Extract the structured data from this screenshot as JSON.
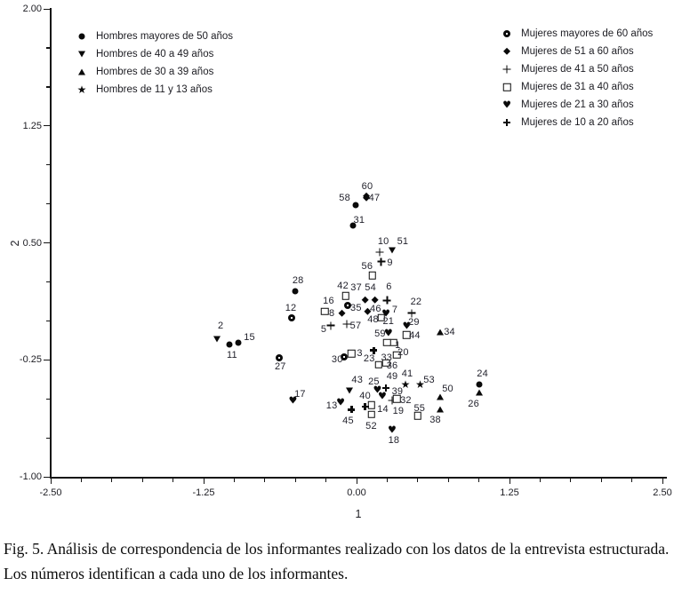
{
  "caption": {
    "text": "Fig. 5. Análisis de correspondencia de los informantes realizado con los datos de la entrevista estructurada. Los números identifican a cada uno de los informantes."
  },
  "chart_data": {
    "type": "scatter",
    "title": "",
    "xlabel": "1",
    "ylabel": "2",
    "xlim": [
      -2.5,
      2.5
    ],
    "ylim": [
      -1.0,
      2.0
    ],
    "grid": false,
    "minor_tick_step": 0.25,
    "x_ticks": [
      {
        "value": -2.5,
        "label": "-2.50"
      },
      {
        "value": -1.25,
        "label": "-1.25"
      },
      {
        "value": 0.0,
        "label": "0.00"
      },
      {
        "value": 1.25,
        "label": "1.25"
      },
      {
        "value": 2.5,
        "label": "2.50"
      }
    ],
    "y_ticks": [
      {
        "value": 2.0,
        "label": "2.00"
      },
      {
        "value": 1.25,
        "label": "1.25"
      },
      {
        "value": 0.5,
        "label": "0.50"
      },
      {
        "value": -0.25,
        "label": "-0.25"
      },
      {
        "value": -1.0,
        "label": "-1.00"
      }
    ],
    "legend_left": [
      {
        "marker": "filled-circle",
        "label": "Hombres mayores de 50 años"
      },
      {
        "marker": "triangle-down",
        "label": "Hombres de 40 a 49 años"
      },
      {
        "marker": "triangle-up",
        "label": "Hombres de 30 a 39 años"
      },
      {
        "marker": "star",
        "label": "Hombres de 11 y 13 años"
      }
    ],
    "legend_right": [
      {
        "marker": "circle-dot",
        "label": "Mujeres mayores de 60 años"
      },
      {
        "marker": "diamond",
        "label": "Mujeres de 51 a 60 años"
      },
      {
        "marker": "plus",
        "label": "Mujeres de 41 a 50 años"
      },
      {
        "marker": "open-square",
        "label": "Mujeres de 31 a 40 años"
      },
      {
        "marker": "heart",
        "label": "Mujeres de 21 a 30 años"
      },
      {
        "marker": "bold-plus",
        "label": "Mujeres de 10 a 20 años"
      }
    ],
    "series": [
      {
        "name": "Hombres mayores de 50 años",
        "marker": "filled-circle",
        "points": [
          {
            "id": "58",
            "x": -0.01,
            "y": 0.74,
            "dx": -12,
            "dy": -8
          },
          {
            "id": "31",
            "x": -0.03,
            "y": 0.61,
            "dx": 7,
            "dy": -6
          },
          {
            "id": "28",
            "x": -0.5,
            "y": 0.19,
            "dx": 3,
            "dy": -12
          },
          {
            "id": "11",
            "x": -1.04,
            "y": -0.15,
            "dx": 3,
            "dy": 12
          },
          {
            "id": "15",
            "x": -0.97,
            "y": -0.14,
            "dx": 13,
            "dy": -6
          },
          {
            "id": "24",
            "x": 1.0,
            "y": -0.41,
            "dx": 4,
            "dy": -12
          }
        ]
      },
      {
        "name": "Hombres de 40 a 49 años",
        "marker": "triangle-down",
        "points": [
          {
            "id": "2",
            "x": -1.14,
            "y": -0.12,
            "dx": 4,
            "dy": -15
          },
          {
            "id": "51",
            "x": 0.29,
            "y": 0.45,
            "dx": 12,
            "dy": -10
          },
          {
            "id": "43",
            "x": -0.06,
            "y": -0.45,
            "dx": 9,
            "dy": -12
          }
        ]
      },
      {
        "name": "Hombres de 30 a 39 años",
        "marker": "triangle-up",
        "points": [
          {
            "id": "34",
            "x": 0.68,
            "y": -0.07,
            "dx": 11,
            "dy": 0
          },
          {
            "id": "50",
            "x": 0.68,
            "y": -0.49,
            "dx": 9,
            "dy": -9
          },
          {
            "id": "26",
            "x": 1.0,
            "y": -0.46,
            "dx": -6,
            "dy": 13
          },
          {
            "id": "38",
            "x": 0.68,
            "y": -0.57,
            "dx": -5,
            "dy": 12
          }
        ]
      },
      {
        "name": "Hombres de 11 y 13 años",
        "marker": "star",
        "points": [
          {
            "id": "41",
            "x": 0.4,
            "y": -0.41,
            "dx": 2,
            "dy": -12
          },
          {
            "id": "53",
            "x": 0.52,
            "y": -0.41,
            "dx": 10,
            "dy": -5
          }
        ]
      },
      {
        "name": "Mujeres mayores de 60 años",
        "marker": "circle-dot",
        "points": [
          {
            "id": "12",
            "x": -0.53,
            "y": 0.02,
            "dx": -1,
            "dy": -11
          },
          {
            "id": "27",
            "x": -0.63,
            "y": -0.24,
            "dx": 1,
            "dy": 10
          },
          {
            "id": "30",
            "x": -0.1,
            "y": -0.23,
            "dx": -8,
            "dy": 3
          },
          {
            "id": "35",
            "x": -0.07,
            "y": 0.1,
            "dx": 9,
            "dy": 3
          }
        ]
      },
      {
        "name": "Mujeres de 51 a 60 años",
        "marker": "diamond",
        "points": [
          {
            "id": "60",
            "x": 0.08,
            "y": 0.8,
            "dx": 1,
            "dy": -11
          },
          {
            "id": "47",
            "x": 0.08,
            "y": 0.79,
            "dx": 9,
            "dy": 0
          },
          {
            "id": "37",
            "x": 0.07,
            "y": 0.13,
            "dx": -10,
            "dy": -14
          },
          {
            "id": "54",
            "x": 0.15,
            "y": 0.13,
            "dx": -5,
            "dy": -14
          },
          {
            "id": "46",
            "x": 0.09,
            "y": 0.06,
            "dx": 9,
            "dy": -3
          },
          {
            "id": "16",
            "x": -0.12,
            "y": 0.05,
            "dx": -15,
            "dy": -14
          }
        ]
      },
      {
        "name": "Mujeres de 41 a 50 años",
        "marker": "plus",
        "points": [
          {
            "id": "10",
            "x": 0.19,
            "y": 0.44,
            "dx": 4,
            "dy": -12
          },
          {
            "id": "9",
            "x": 0.2,
            "y": 0.38,
            "dx": 10,
            "dy": 1
          },
          {
            "id": "6",
            "x": 0.25,
            "y": 0.13,
            "dx": 2,
            "dy": -15
          },
          {
            "id": "22",
            "x": 0.45,
            "y": 0.05,
            "dx": 5,
            "dy": -13
          },
          {
            "id": "5",
            "x": -0.21,
            "y": -0.03,
            "dx": -8,
            "dy": 4
          },
          {
            "id": "57",
            "x": -0.08,
            "y": -0.02,
            "dx": 10,
            "dy": 2
          },
          {
            "id": "19",
            "x": 0.29,
            "y": -0.51,
            "dx": 7,
            "dy": 12
          }
        ]
      },
      {
        "name": "Mujeres de 31 a 40 años",
        "marker": "open-square",
        "points": [
          {
            "id": "56",
            "x": 0.13,
            "y": 0.29,
            "dx": -6,
            "dy": -10
          },
          {
            "id": "42",
            "x": -0.09,
            "y": 0.16,
            "dx": -3,
            "dy": -11
          },
          {
            "id": "8",
            "x": -0.26,
            "y": 0.06,
            "dx": 8,
            "dy": 2
          },
          {
            "id": "3",
            "x": -0.04,
            "y": -0.21,
            "dx": 9,
            "dy": 0
          },
          {
            "id": "48",
            "x": 0.2,
            "y": 0.02,
            "dx": -9,
            "dy": 2
          },
          {
            "id": "44",
            "x": 0.41,
            "y": -0.09,
            "dx": 9,
            "dy": 1
          },
          {
            "id": "1",
            "x": 0.3,
            "y": -0.14,
            "dx": 5,
            "dy": 3
          },
          {
            "id": "59",
            "x": 0.25,
            "y": -0.14,
            "dx": -8,
            "dy": -10
          },
          {
            "id": "20",
            "x": 0.33,
            "y": -0.22,
            "dx": 7,
            "dy": -3
          },
          {
            "id": "33",
            "x": 0.18,
            "y": -0.28,
            "dx": 9,
            "dy": -8
          },
          {
            "id": "36",
            "x": 0.24,
            "y": -0.27,
            "dx": 7,
            "dy": 3
          },
          {
            "id": "32",
            "x": 0.33,
            "y": -0.5,
            "dx": 10,
            "dy": 2
          },
          {
            "id": "55",
            "x": 0.5,
            "y": -0.61,
            "dx": 2,
            "dy": -8
          },
          {
            "id": "14",
            "x": 0.12,
            "y": -0.54,
            "dx": 13,
            "dy": 5
          },
          {
            "id": "52",
            "x": 0.12,
            "y": -0.6,
            "dx": 0,
            "dy": 13
          }
        ]
      },
      {
        "name": "Mujeres de 21 a 30 años",
        "marker": "heart",
        "points": [
          {
            "id": "7",
            "x": 0.24,
            "y": 0.05,
            "dx": 10,
            "dy": -4
          },
          {
            "id": "29",
            "x": 0.41,
            "y": -0.03,
            "dx": 8,
            "dy": -4
          },
          {
            "id": "21",
            "x": 0.26,
            "y": -0.08,
            "dx": 0,
            "dy": -13
          },
          {
            "id": "25",
            "x": 0.17,
            "y": -0.44,
            "dx": -4,
            "dy": -9
          },
          {
            "id": "39",
            "x": 0.21,
            "y": -0.48,
            "dx": 17,
            "dy": -5
          },
          {
            "id": "13",
            "x": -0.13,
            "y": -0.52,
            "dx": -10,
            "dy": 4
          },
          {
            "id": "17",
            "x": -0.52,
            "y": -0.51,
            "dx": 8,
            "dy": -7
          },
          {
            "id": "18",
            "x": 0.29,
            "y": -0.7,
            "dx": 2,
            "dy": 12
          }
        ]
      },
      {
        "name": "Mujeres de 10 a 20 años",
        "marker": "bold-plus",
        "points": [
          {
            "id": "23",
            "x": 0.14,
            "y": -0.19,
            "dx": -5,
            "dy": 9
          },
          {
            "id": "49",
            "x": 0.24,
            "y": -0.43,
            "dx": 7,
            "dy": -13
          },
          {
            "id": "40",
            "x": 0.07,
            "y": -0.55,
            "dx": 0,
            "dy": -12
          },
          {
            "id": "45",
            "x": -0.04,
            "y": -0.57,
            "dx": -4,
            "dy": 13
          }
        ]
      }
    ]
  }
}
